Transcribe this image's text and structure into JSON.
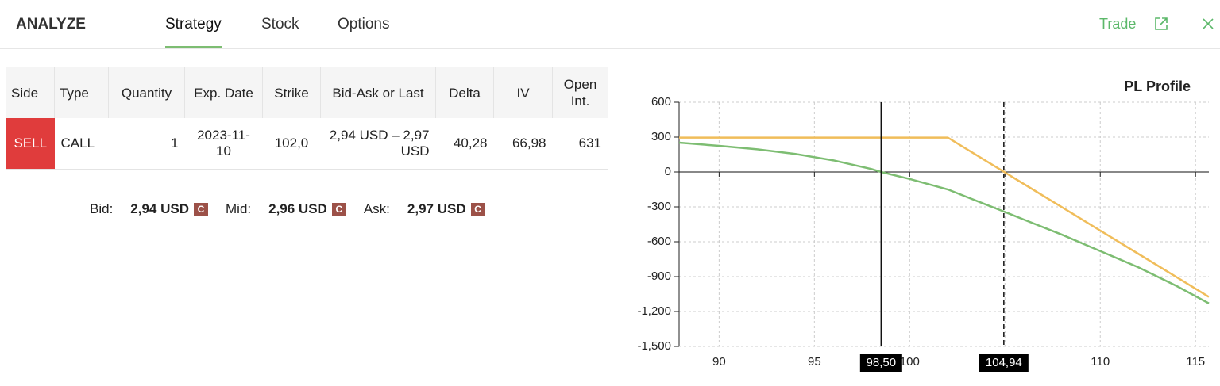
{
  "header": {
    "title": "ANALYZE",
    "tabs": [
      "Strategy",
      "Stock",
      "Options"
    ],
    "active_tab": 0,
    "action": "Trade"
  },
  "table": {
    "columns": [
      "Side",
      "Type",
      "Quantity",
      "Exp. Date",
      "Strike",
      "Bid-Ask or Last",
      "Delta",
      "IV",
      "Open Int."
    ],
    "rows": [
      [
        "SELL",
        "CALL",
        "1",
        "2023-11-10",
        "102,0",
        "2,94 USD – 2,97 USD",
        "40,28",
        "66,98",
        "631"
      ]
    ]
  },
  "quotes": [
    {
      "label": "Bid:",
      "value": "2,94 USD",
      "badge": "C"
    },
    {
      "label": "Mid:",
      "value": "2,96 USD",
      "badge": "C"
    },
    {
      "label": "Ask:",
      "value": "2,97 USD",
      "badge": "C"
    }
  ],
  "chart_data": {
    "type": "line",
    "title": "PL Profile",
    "x": [
      87.9,
      90,
      92,
      94,
      96,
      98,
      98.5,
      100,
      102,
      104,
      104.94,
      106,
      108,
      110,
      112,
      114,
      115.7
    ],
    "series": [
      {
        "color": "#7dbd72",
        "values": [
          252,
          225,
          195,
          155,
          100,
          25,
          0,
          -60,
          -150,
          -280,
          -340,
          -410,
          -540,
          -680,
          -820,
          -980,
          -1130
        ]
      },
      {
        "color": "#f0bd5a",
        "values": [
          296,
          296,
          296,
          296,
          296,
          296,
          296,
          296,
          296,
          96,
          2,
          -104,
          -304,
          -504,
          -704,
          -904,
          -1074
        ]
      }
    ],
    "xlim": [
      87.9,
      115.7
    ],
    "ylim": [
      -1500,
      600
    ],
    "xticks": [
      90,
      95,
      100,
      105,
      110,
      115
    ],
    "yticks": [
      {
        "value": -1500,
        "label": "-1,500"
      },
      {
        "value": -1200,
        "label": "-1,200"
      },
      -900,
      -600,
      -300,
      0,
      300,
      600
    ],
    "grid": true,
    "markers": [
      {
        "value": 98.5,
        "label": "98,50",
        "style": "solid"
      },
      {
        "value": 104.94,
        "label": "104,94",
        "style": "dashed"
      }
    ]
  }
}
